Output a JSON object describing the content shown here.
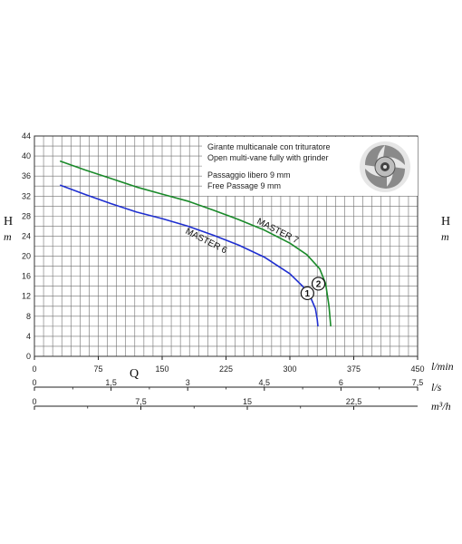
{
  "chart_data": {
    "type": "line",
    "title": "",
    "ylabel_left": "H",
    "ylabel_left_unit": "m",
    "ylabel_right": "H",
    "ylabel_right_unit": "m",
    "xlabel": "Q",
    "ylim": [
      0,
      44
    ],
    "yticks": [
      0,
      4,
      8,
      12,
      16,
      20,
      24,
      28,
      32,
      36,
      40,
      44
    ],
    "x_axes": [
      {
        "unit": "l/min",
        "range": [
          0,
          450
        ],
        "ticks": [
          "0",
          "75",
          "150",
          "225",
          "300",
          "375",
          "450"
        ],
        "values": [
          0,
          75,
          150,
          225,
          300,
          375,
          450
        ]
      },
      {
        "unit": "l/s",
        "range": [
          0,
          7.5
        ],
        "ticks": [
          "0",
          "1,5",
          "3",
          "4,5",
          "6",
          "7,5"
        ],
        "values": [
          0,
          1.5,
          3,
          4.5,
          6,
          7.5
        ]
      },
      {
        "unit": "m³/h",
        "range": [
          0,
          27
        ],
        "ticks": [
          "0",
          "7,5",
          "15",
          "22,5"
        ],
        "values": [
          0,
          7.5,
          15,
          22.5
        ]
      }
    ],
    "grid": true,
    "series": [
      {
        "name": "MASTER 6",
        "marker": "1",
        "color": "#1f2fd0",
        "x": [
          30,
          60,
          90,
          120,
          150,
          180,
          210,
          240,
          270,
          300,
          315,
          325,
          330,
          332,
          333
        ],
        "y": [
          34.2,
          32.3,
          30.5,
          28.8,
          27.5,
          26.0,
          24.2,
          22.2,
          19.8,
          16.5,
          14.0,
          11.5,
          9.5,
          7.5,
          6.0
        ]
      },
      {
        "name": "MASTER 7",
        "marker": "2",
        "color": "#1a8a2a",
        "x": [
          30,
          60,
          90,
          120,
          150,
          180,
          210,
          240,
          270,
          300,
          320,
          335,
          342,
          346,
          348
        ],
        "y": [
          39.0,
          37.2,
          35.5,
          33.8,
          32.4,
          31.0,
          29.2,
          27.3,
          25.2,
          22.6,
          20.3,
          17.5,
          14.5,
          10.0,
          6.0
        ]
      }
    ],
    "annotations": [
      "Girante multicanale con trituratore",
      "Open multi-vane fully with grinder",
      "Passaggio libero 9 mm",
      "Free Passage 9 mm"
    ]
  },
  "colors": {
    "grid": "#6f6f6f",
    "master6": "#1f2fd0",
    "master7": "#1a8a2a"
  },
  "icons": [
    "impeller-icon"
  ]
}
